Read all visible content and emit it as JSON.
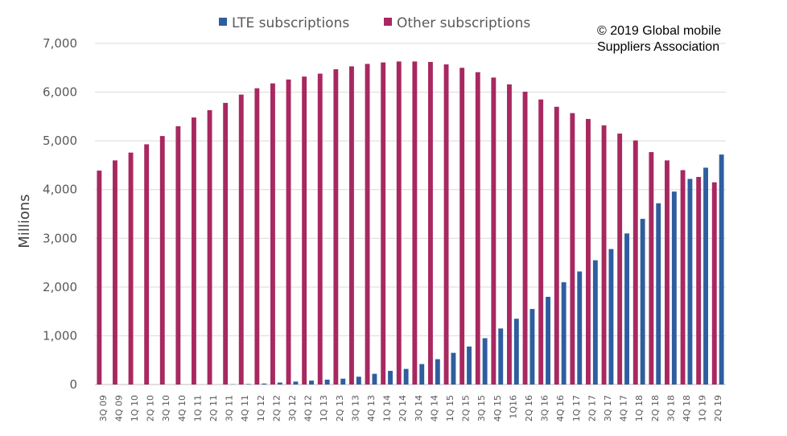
{
  "chart_data": {
    "type": "bar",
    "ylabel": "Millions",
    "ylim": [
      0,
      7000
    ],
    "yticks": [
      "0",
      "1,000",
      "2,000",
      "3,000",
      "4,000",
      "5,000",
      "6,000",
      "7,000"
    ],
    "grid": "horizontal",
    "legend_position": "top",
    "categories": [
      "3Q 09",
      "4Q 09",
      "1Q 10",
      "2Q 10",
      "3Q 10",
      "4Q 10",
      "1Q 11",
      "2Q 11",
      "3Q 11",
      "4Q 11",
      "1Q 12",
      "2Q 12",
      "3Q 12",
      "4Q 12",
      "1Q 13",
      "2Q 13",
      "3Q 13",
      "4Q 13",
      "1Q 14",
      "2Q 14",
      "3Q 14",
      "4Q 14",
      "1Q 15",
      "2Q 15",
      "3Q 15",
      "4Q 15",
      "1Q16",
      "2Q 16",
      "3Q 16",
      "4Q 16",
      "1Q 17",
      "2Q 17",
      "3Q 17",
      "4Q 17",
      "1Q 18",
      "2Q 18",
      "3Q 18",
      "4Q 18",
      "1Q 19",
      "2Q 19"
    ],
    "series": [
      {
        "name": "LTE subscriptions",
        "color": "#2E5E9E",
        "values": [
          0,
          0,
          0,
          0,
          0,
          0,
          0,
          0,
          5,
          10,
          20,
          40,
          60,
          80,
          100,
          120,
          160,
          220,
          280,
          320,
          420,
          520,
          650,
          780,
          950,
          1150,
          1350,
          1550,
          1800,
          2100,
          2320,
          2550,
          2780,
          3100,
          3400,
          3720,
          3960,
          4220,
          4450,
          4720
        ]
      },
      {
        "name": "Other subscriptions",
        "color": "#A82860",
        "values": [
          4390,
          4600,
          4760,
          4930,
          5100,
          5300,
          5480,
          5630,
          5780,
          5950,
          6080,
          6180,
          6260,
          6320,
          6380,
          6470,
          6530,
          6580,
          6610,
          6630,
          6630,
          6620,
          6570,
          6500,
          6410,
          6300,
          6160,
          6010,
          5850,
          5700,
          5570,
          5450,
          5320,
          5150,
          5010,
          4770,
          4600,
          4400,
          4260,
          4150
        ]
      }
    ]
  },
  "copyright": {
    "line1": "© 2019 Global mobile",
    "line2": "Suppliers Association"
  }
}
